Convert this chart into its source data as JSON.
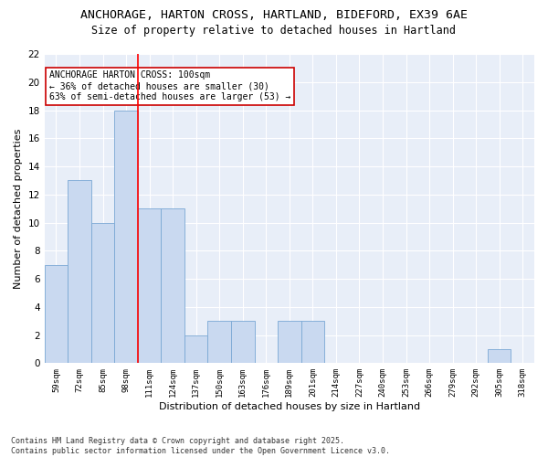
{
  "title1": "ANCHORAGE, HARTON CROSS, HARTLAND, BIDEFORD, EX39 6AE",
  "title2": "Size of property relative to detached houses in Hartland",
  "xlabel": "Distribution of detached houses by size in Hartland",
  "ylabel": "Number of detached properties",
  "categories": [
    "59sqm",
    "72sqm",
    "85sqm",
    "98sqm",
    "111sqm",
    "124sqm",
    "137sqm",
    "150sqm",
    "163sqm",
    "176sqm",
    "189sqm",
    "201sqm",
    "214sqm",
    "227sqm",
    "240sqm",
    "253sqm",
    "266sqm",
    "279sqm",
    "292sqm",
    "305sqm",
    "318sqm"
  ],
  "values": [
    7,
    13,
    10,
    18,
    11,
    11,
    2,
    3,
    3,
    0,
    3,
    3,
    0,
    0,
    0,
    0,
    0,
    0,
    0,
    1,
    0
  ],
  "bar_color": "#c9d9f0",
  "bar_edge_color": "#7aa8d4",
  "red_line_index": 3,
  "annotation_text": "ANCHORAGE HARTON CROSS: 100sqm\n← 36% of detached houses are smaller (30)\n63% of semi-detached houses are larger (53) →",
  "annotation_box_color": "white",
  "annotation_box_edge": "#cc0000",
  "ylim": [
    0,
    22
  ],
  "yticks": [
    0,
    2,
    4,
    6,
    8,
    10,
    12,
    14,
    16,
    18,
    20,
    22
  ],
  "footer": "Contains HM Land Registry data © Crown copyright and database right 2025.\nContains public sector information licensed under the Open Government Licence v3.0.",
  "fig_background_color": "#ffffff",
  "plot_background": "#e8eef8",
  "grid_color": "#ffffff",
  "title_fontsize": 9.5,
  "subtitle_fontsize": 8.5,
  "annotation_fontsize": 7,
  "footer_fontsize": 6,
  "ylabel_fontsize": 8,
  "xlabel_fontsize": 8
}
